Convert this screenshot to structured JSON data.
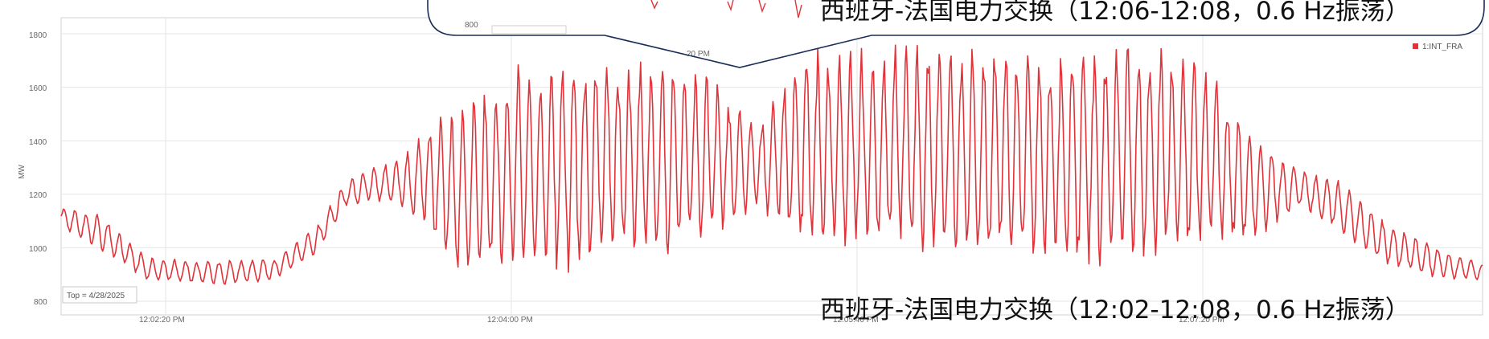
{
  "chart_data": {
    "type": "line",
    "ylabel": "MW",
    "y_ticks": [
      "800",
      "1000",
      "1200",
      "1400",
      "1600",
      "1800"
    ],
    "ylim": [
      800,
      1800
    ],
    "x_ticks": [
      "12:02:20 PM",
      "12:04:00 PM",
      "12:05:40 PM",
      "12:07:20 PM"
    ],
    "legend": "1:INT_FRA",
    "date_box": "Top = 4/28/2025",
    "grid": true,
    "series": [
      {
        "name": "1:INT_FRA",
        "color": "#e0333a",
        "envelope": [
          {
            "t": 0,
            "low": 1080,
            "high": 1150
          },
          {
            "t": 0.03,
            "low": 980,
            "high": 1120
          },
          {
            "t": 0.06,
            "low": 880,
            "high": 960
          },
          {
            "t": 0.11,
            "low": 860,
            "high": 950
          },
          {
            "t": 0.15,
            "low": 880,
            "high": 960
          },
          {
            "t": 0.18,
            "low": 980,
            "high": 1080
          },
          {
            "t": 0.2,
            "low": 1150,
            "high": 1250
          },
          {
            "t": 0.22,
            "low": 1180,
            "high": 1300
          },
          {
            "t": 0.24,
            "low": 1150,
            "high": 1330
          },
          {
            "t": 0.26,
            "low": 1050,
            "high": 1470
          },
          {
            "t": 0.28,
            "low": 890,
            "high": 1500
          },
          {
            "t": 0.32,
            "low": 900,
            "high": 1690
          },
          {
            "t": 0.38,
            "low": 960,
            "high": 1690
          },
          {
            "t": 0.45,
            "low": 1010,
            "high": 1660
          },
          {
            "t": 0.49,
            "low": 1160,
            "high": 1450
          },
          {
            "t": 0.52,
            "low": 1000,
            "high": 1720
          },
          {
            "t": 0.58,
            "low": 1000,
            "high": 1750
          },
          {
            "t": 0.63,
            "low": 960,
            "high": 1740
          },
          {
            "t": 0.7,
            "low": 950,
            "high": 1720
          },
          {
            "t": 0.76,
            "low": 960,
            "high": 1760
          },
          {
            "t": 0.8,
            "low": 1000,
            "high": 1700
          },
          {
            "t": 0.84,
            "low": 1020,
            "high": 1420
          },
          {
            "t": 0.87,
            "low": 1150,
            "high": 1300
          },
          {
            "t": 0.9,
            "low": 1060,
            "high": 1240
          },
          {
            "t": 0.93,
            "low": 940,
            "high": 1100
          },
          {
            "t": 0.97,
            "low": 880,
            "high": 1000
          },
          {
            "t": 1.0,
            "low": 880,
            "high": 940
          }
        ]
      }
    ]
  },
  "annotations": {
    "top": "西班牙-法国电力交换（12:06-12:08，0.6 Hz振荡）",
    "bottom": "西班牙-法国电力交换（12:02-12:08，0.6 Hz振荡）",
    "inset_tick_y": "800",
    "inset_tick_x": "20 PM"
  }
}
